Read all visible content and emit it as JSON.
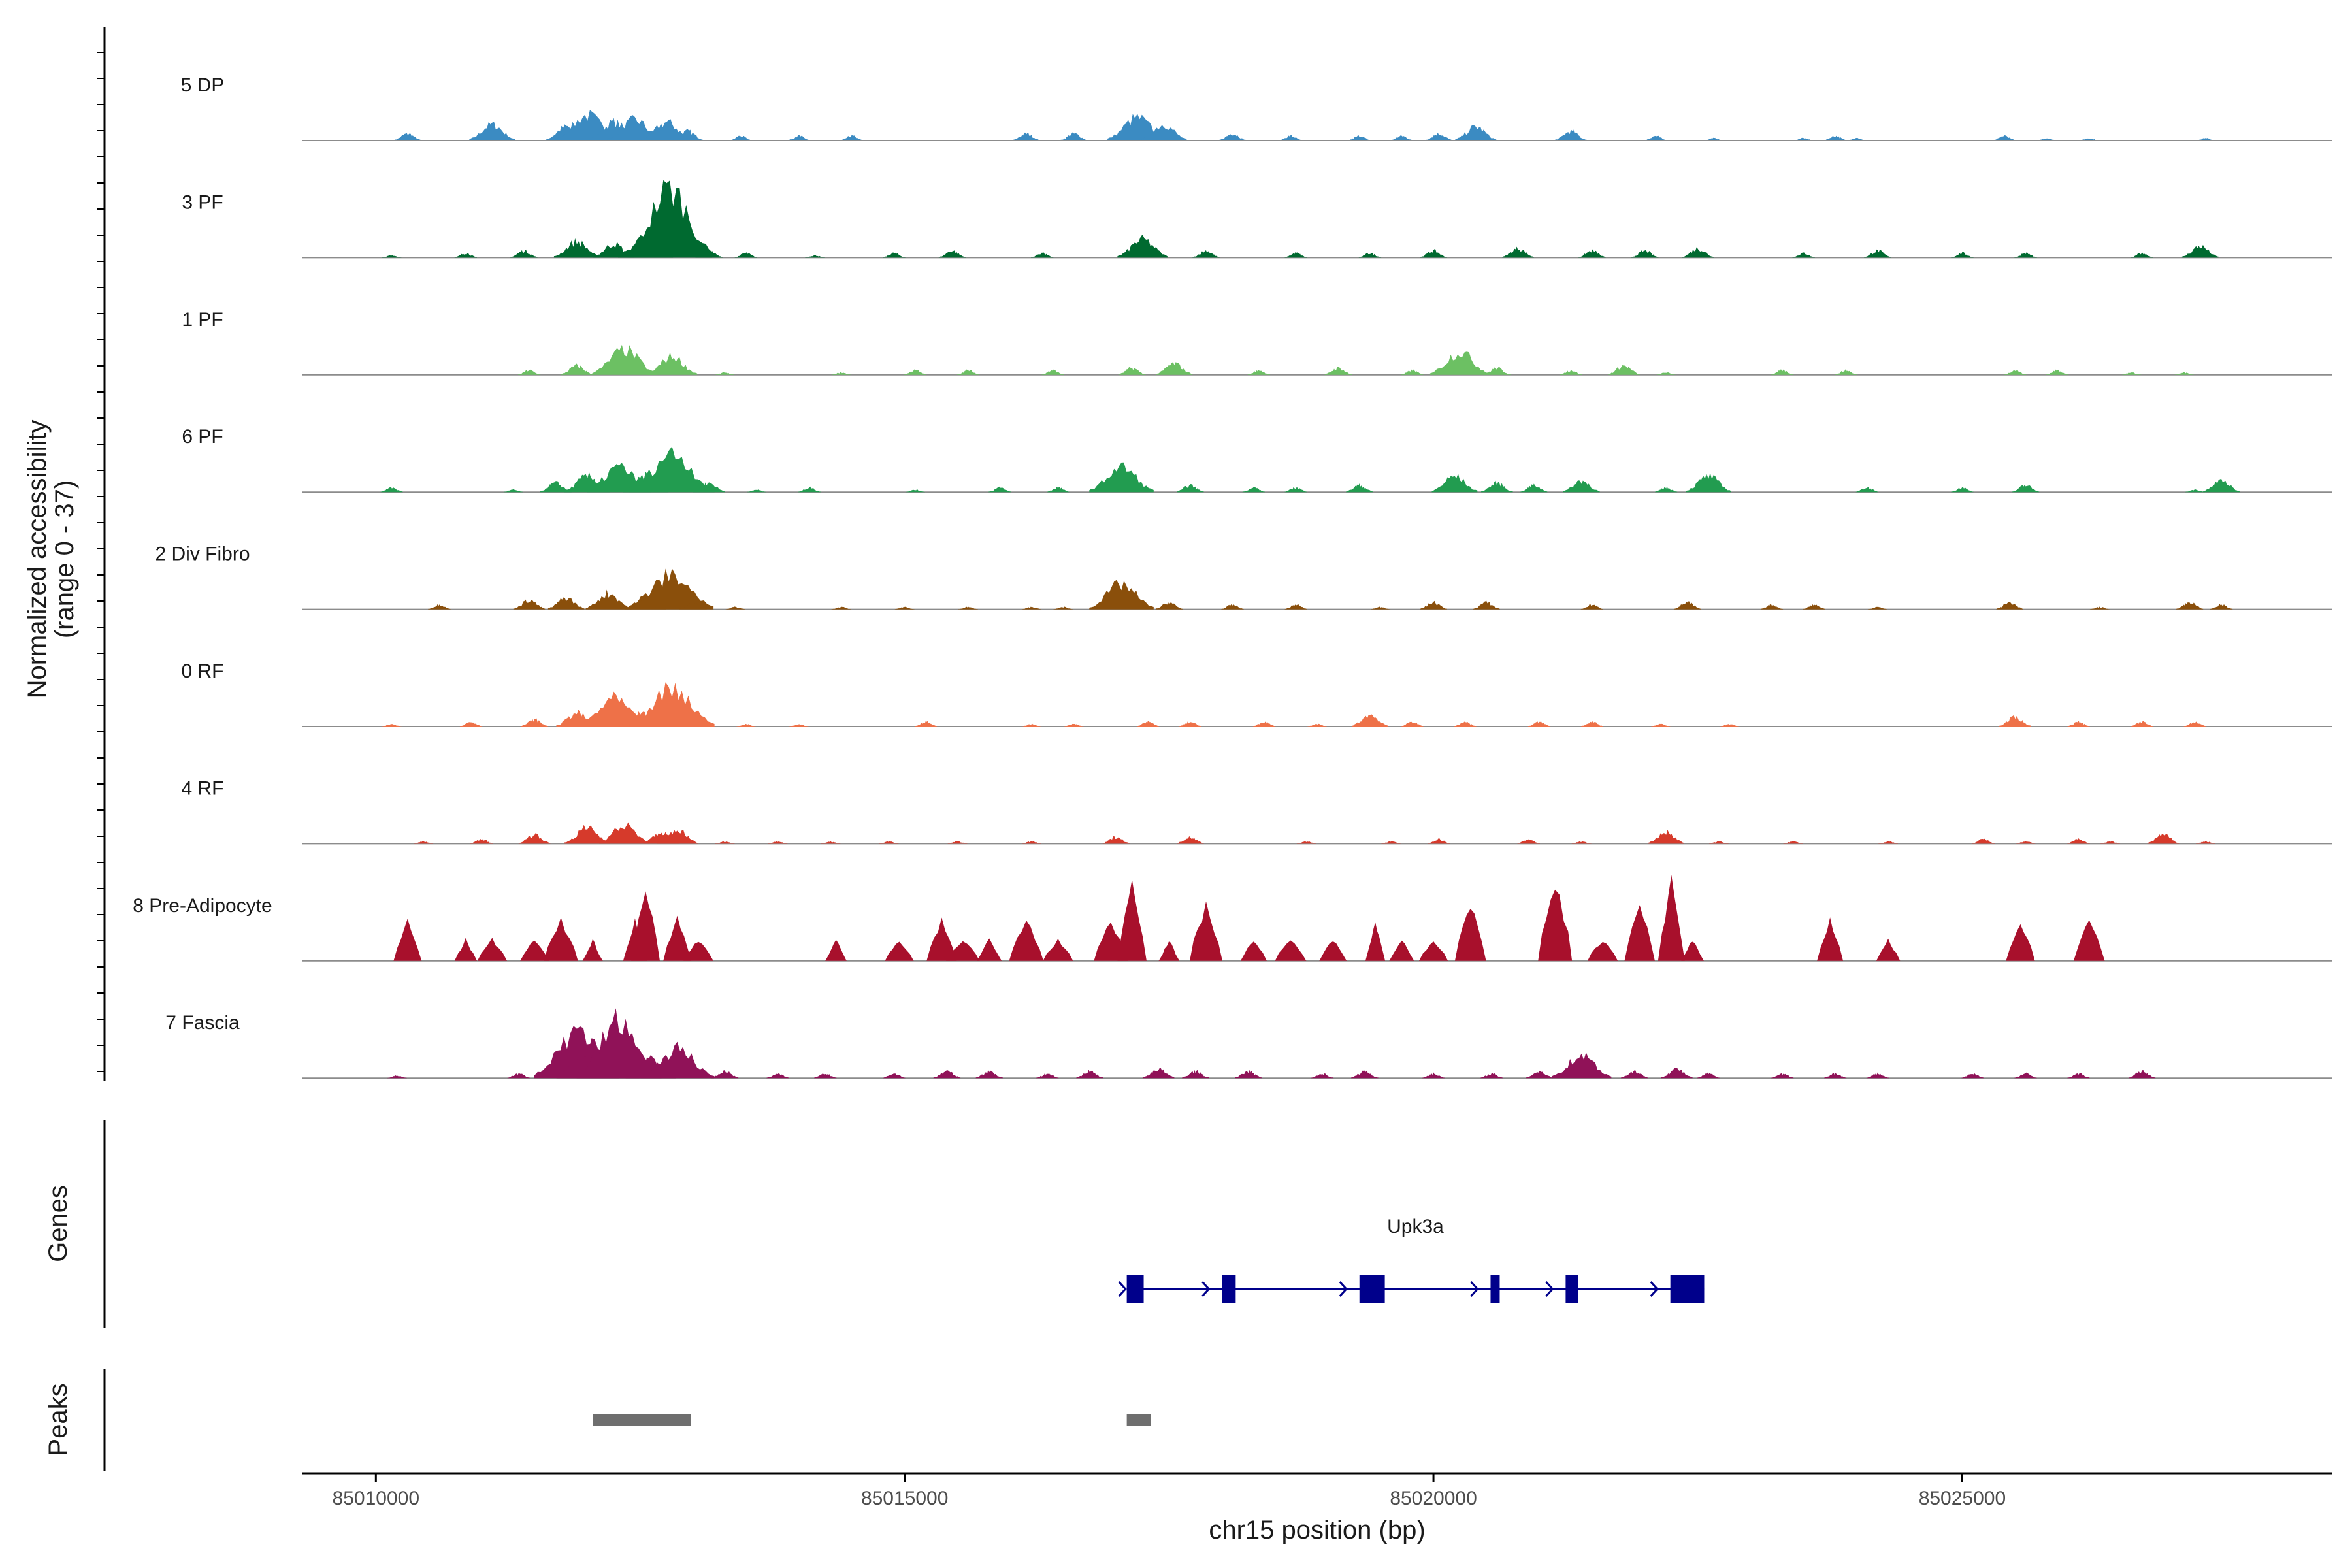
{
  "chart_data": {
    "type": "area",
    "title": "",
    "ylabel_line1": "Normalized accessibility",
    "ylabel_line2": "(range 0 - 37)",
    "y_range": [
      0,
      37
    ],
    "xlabel": "chr15 position (bp)",
    "xlim": [
      85009300,
      85028500
    ],
    "x_ticks": [
      85010000,
      85015000,
      85020000,
      85025000
    ],
    "x_tick_labels": [
      "85010000",
      "85015000",
      "85020000",
      "85025000"
    ],
    "tracks": [
      {
        "name": "5 DP",
        "color": "#3b8bc2",
        "peaks": [
          [
            85010300,
            3
          ],
          [
            85011100,
            7
          ],
          [
            85011800,
            6
          ],
          [
            85012000,
            11
          ],
          [
            85012250,
            8
          ],
          [
            85012450,
            9
          ],
          [
            85012750,
            8
          ],
          [
            85012950,
            4
          ],
          [
            85013450,
            2
          ],
          [
            85014000,
            2
          ],
          [
            85014500,
            2
          ],
          [
            85016150,
            3
          ],
          [
            85016600,
            3
          ],
          [
            85017200,
            10
          ],
          [
            85017450,
            7
          ],
          [
            85018100,
            3
          ],
          [
            85018650,
            2
          ],
          [
            85019300,
            2
          ],
          [
            85019700,
            2
          ],
          [
            85020050,
            3
          ],
          [
            85020400,
            6
          ],
          [
            85021300,
            4
          ],
          [
            85022100,
            2
          ],
          [
            85022650,
            1
          ],
          [
            85023500,
            1
          ],
          [
            85023800,
            2
          ],
          [
            85024000,
            1
          ],
          [
            85025400,
            2
          ],
          [
            85025800,
            1
          ],
          [
            85026200,
            1
          ],
          [
            85027300,
            1
          ]
        ]
      },
      {
        "name": "3 PF",
        "color": "#006a30",
        "peaks": [
          [
            85010150,
            1
          ],
          [
            85010850,
            2
          ],
          [
            85011400,
            3
          ],
          [
            85011900,
            7
          ],
          [
            85012250,
            6
          ],
          [
            85012550,
            9
          ],
          [
            85012780,
            30
          ],
          [
            85013150,
            3
          ],
          [
            85013500,
            2
          ],
          [
            85014150,
            1
          ],
          [
            85014900,
            2
          ],
          [
            85015450,
            3
          ],
          [
            85016300,
            2
          ],
          [
            85017250,
            8
          ],
          [
            85017850,
            3
          ],
          [
            85018700,
            2
          ],
          [
            85019400,
            2
          ],
          [
            85020000,
            3
          ],
          [
            85020800,
            4
          ],
          [
            85021500,
            3
          ],
          [
            85022000,
            3
          ],
          [
            85022500,
            4
          ],
          [
            85023500,
            2
          ],
          [
            85024200,
            3
          ],
          [
            85025000,
            2
          ],
          [
            85025600,
            2
          ],
          [
            85026700,
            2
          ],
          [
            85027250,
            5
          ]
        ]
      },
      {
        "name": "1 PF",
        "color": "#6cc063",
        "peaks": [
          [
            85011450,
            2
          ],
          [
            85011900,
            4
          ],
          [
            85012350,
            11
          ],
          [
            85012800,
            8
          ],
          [
            85013300,
            1
          ],
          [
            85014400,
            1
          ],
          [
            85015100,
            2
          ],
          [
            85015600,
            2
          ],
          [
            85016400,
            2
          ],
          [
            85017150,
            3
          ],
          [
            85017550,
            5
          ],
          [
            85018350,
            2
          ],
          [
            85019100,
            3
          ],
          [
            85019800,
            2
          ],
          [
            85020250,
            10
          ],
          [
            85020600,
            3
          ],
          [
            85021300,
            2
          ],
          [
            85021800,
            4
          ],
          [
            85022200,
            1
          ],
          [
            85023300,
            2
          ],
          [
            85023900,
            2
          ],
          [
            85025500,
            2
          ],
          [
            85025900,
            2
          ],
          [
            85026600,
            1
          ],
          [
            85027100,
            1
          ]
        ]
      },
      {
        "name": "6 PF",
        "color": "#229c50",
        "peaks": [
          [
            85010150,
            2
          ],
          [
            85011300,
            1
          ],
          [
            85011700,
            4
          ],
          [
            85012000,
            7
          ],
          [
            85012300,
            11
          ],
          [
            85012550,
            7
          ],
          [
            85012800,
            17
          ],
          [
            85013150,
            4
          ],
          [
            85013600,
            1
          ],
          [
            85014100,
            2
          ],
          [
            85015100,
            1
          ],
          [
            85015900,
            2
          ],
          [
            85016450,
            2
          ],
          [
            85017050,
            11
          ],
          [
            85017700,
            3
          ],
          [
            85018300,
            2
          ],
          [
            85018700,
            2
          ],
          [
            85019300,
            3
          ],
          [
            85020200,
            7
          ],
          [
            85020600,
            4
          ],
          [
            85020950,
            3
          ],
          [
            85021400,
            5
          ],
          [
            85022200,
            2
          ],
          [
            85022600,
            7
          ],
          [
            85024100,
            2
          ],
          [
            85025000,
            2
          ],
          [
            85025600,
            3
          ],
          [
            85027200,
            1
          ],
          [
            85027450,
            5
          ]
        ]
      },
      {
        "name": "2 Div Fibro",
        "color": "#8a4f0b",
        "peaks": [
          [
            85010600,
            2
          ],
          [
            85011450,
            4
          ],
          [
            85011800,
            5
          ],
          [
            85012200,
            7
          ],
          [
            85012550,
            6
          ],
          [
            85012800,
            15
          ],
          [
            85013000,
            3
          ],
          [
            85013400,
            1
          ],
          [
            85014400,
            1
          ],
          [
            85015000,
            1
          ],
          [
            85015600,
            1
          ],
          [
            85016200,
            1
          ],
          [
            85016500,
            1
          ],
          [
            85017050,
            11
          ],
          [
            85017500,
            3
          ],
          [
            85018100,
            2
          ],
          [
            85018700,
            2
          ],
          [
            85019500,
            1
          ],
          [
            85020000,
            3
          ],
          [
            85020500,
            3
          ],
          [
            85021500,
            2
          ],
          [
            85022400,
            3
          ],
          [
            85023200,
            2
          ],
          [
            85023600,
            2
          ],
          [
            85024200,
            1
          ],
          [
            85025450,
            3
          ],
          [
            85026300,
            1
          ],
          [
            85027150,
            3
          ],
          [
            85027450,
            2
          ]
        ]
      },
      {
        "name": "0 RF",
        "color": "#ee7148",
        "peaks": [
          [
            85010150,
            1
          ],
          [
            85010900,
            2
          ],
          [
            85011500,
            3
          ],
          [
            85011900,
            6
          ],
          [
            85012250,
            12
          ],
          [
            85012500,
            6
          ],
          [
            85012800,
            17
          ],
          [
            85013100,
            2
          ],
          [
            85013500,
            1
          ],
          [
            85014000,
            1
          ],
          [
            85015200,
            2
          ],
          [
            85016200,
            1
          ],
          [
            85016600,
            1
          ],
          [
            85017300,
            2
          ],
          [
            85017700,
            2
          ],
          [
            85018400,
            2
          ],
          [
            85018900,
            1
          ],
          [
            85019400,
            5
          ],
          [
            85019800,
            2
          ],
          [
            85020300,
            2
          ],
          [
            85021000,
            2
          ],
          [
            85021500,
            2
          ],
          [
            85022150,
            1
          ],
          [
            85022800,
            1
          ],
          [
            85025500,
            4
          ],
          [
            85026100,
            2
          ],
          [
            85026700,
            2
          ],
          [
            85027200,
            2
          ]
        ]
      },
      {
        "name": "4 RF",
        "color": "#d63a2b",
        "peaks": [
          [
            85010450,
            1
          ],
          [
            85011000,
            2
          ],
          [
            85011500,
            4
          ],
          [
            85012000,
            7
          ],
          [
            85012350,
            8
          ],
          [
            85012700,
            5
          ],
          [
            85012850,
            6
          ],
          [
            85013300,
            1
          ],
          [
            85013800,
            1
          ],
          [
            85014300,
            1
          ],
          [
            85014850,
            1
          ],
          [
            85015500,
            1
          ],
          [
            85016200,
            1
          ],
          [
            85017000,
            3
          ],
          [
            85017700,
            3
          ],
          [
            85018800,
            1
          ],
          [
            85019600,
            1
          ],
          [
            85020050,
            2
          ],
          [
            85020900,
            2
          ],
          [
            85021400,
            1
          ],
          [
            85022200,
            5
          ],
          [
            85022700,
            1
          ],
          [
            85023400,
            1
          ],
          [
            85024300,
            1
          ],
          [
            85025200,
            2
          ],
          [
            85025600,
            1
          ],
          [
            85026100,
            2
          ],
          [
            85026400,
            1
          ],
          [
            85026900,
            4
          ],
          [
            85027300,
            1
          ]
        ]
      },
      {
        "name": "8 Pre-Adipocyte",
        "color": "#a8102c",
        "peaks": [
          [
            85010300,
            15
          ],
          [
            85010850,
            8
          ],
          [
            85011100,
            8
          ],
          [
            85011500,
            8
          ],
          [
            85011750,
            15
          ],
          [
            85012050,
            8
          ],
          [
            85012450,
            15
          ],
          [
            85012550,
            28
          ],
          [
            85012850,
            16
          ],
          [
            85013050,
            8
          ],
          [
            85014350,
            8
          ],
          [
            85014950,
            8
          ],
          [
            85015350,
            15
          ],
          [
            85015550,
            8
          ],
          [
            85015800,
            8
          ],
          [
            85016150,
            15
          ],
          [
            85016450,
            8
          ],
          [
            85016950,
            15
          ],
          [
            85017150,
            30
          ],
          [
            85017500,
            8
          ],
          [
            85017850,
            21
          ],
          [
            85018300,
            8
          ],
          [
            85018650,
            8
          ],
          [
            85019050,
            8
          ],
          [
            85019450,
            16
          ],
          [
            85019700,
            8
          ],
          [
            85020000,
            8
          ],
          [
            85020350,
            21
          ],
          [
            85021150,
            30
          ],
          [
            85021600,
            8
          ],
          [
            85021950,
            21
          ],
          [
            85022250,
            30
          ],
          [
            85022450,
            8
          ],
          [
            85023750,
            16
          ],
          [
            85024300,
            8
          ],
          [
            85025550,
            15
          ],
          [
            85026200,
            15
          ]
        ]
      },
      {
        "name": "7 Fascia",
        "color": "#901258",
        "peaks": [
          [
            85010200,
            1
          ],
          [
            85011350,
            2
          ],
          [
            85011900,
            20
          ],
          [
            85012100,
            15
          ],
          [
            85012300,
            25
          ],
          [
            85012600,
            8
          ],
          [
            85012850,
            13
          ],
          [
            85013300,
            3
          ],
          [
            85013800,
            2
          ],
          [
            85014250,
            2
          ],
          [
            85014900,
            2
          ],
          [
            85015400,
            3
          ],
          [
            85015800,
            3
          ],
          [
            85016350,
            2
          ],
          [
            85016750,
            3
          ],
          [
            85017400,
            4
          ],
          [
            85017750,
            3
          ],
          [
            85018250,
            3
          ],
          [
            85018950,
            2
          ],
          [
            85019350,
            3
          ],
          [
            85020000,
            2
          ],
          [
            85020550,
            2
          ],
          [
            85021000,
            3
          ],
          [
            85021400,
            10
          ],
          [
            85021900,
            3
          ],
          [
            85022300,
            4
          ],
          [
            85022600,
            2
          ],
          [
            85023300,
            2
          ],
          [
            85023800,
            2
          ],
          [
            85024200,
            2
          ],
          [
            85025100,
            2
          ],
          [
            85025600,
            2
          ],
          [
            85026100,
            2
          ],
          [
            85026700,
            3
          ]
        ]
      }
    ],
    "genes_label": "Genes",
    "gene": {
      "name": "Upk3a",
      "start": 85017100,
      "end": 85022560,
      "strand": "+",
      "color": "#00008b",
      "exons": [
        [
          85017100,
          85017260
        ],
        [
          85018000,
          85018130
        ],
        [
          85019300,
          85019540
        ],
        [
          85020540,
          85020620
        ],
        [
          85021250,
          85021370
        ],
        [
          85022240,
          85022560
        ]
      ]
    },
    "peaks_label": "Peaks",
    "peak_regions": [
      [
        85012050,
        85012980
      ],
      [
        85017100,
        85017330
      ]
    ],
    "peak_color": "#6e6e6e"
  }
}
